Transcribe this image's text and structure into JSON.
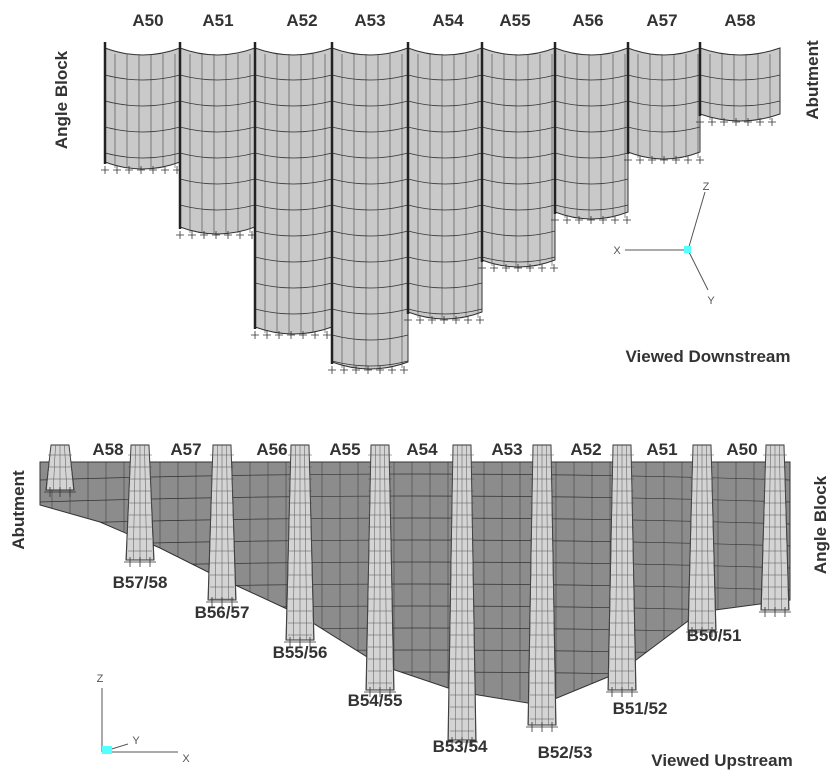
{
  "top_view": {
    "block_labels": [
      "A50",
      "A51",
      "A52",
      "A53",
      "A54",
      "A55",
      "A56",
      "A57",
      "A58"
    ],
    "left_label": "Angle Block",
    "right_label": "Abutment",
    "caption": "Viewed Downstream",
    "axes": {
      "z": "Z",
      "x": "X",
      "y": "Y"
    }
  },
  "bottom_view": {
    "block_labels": [
      "A58",
      "A57",
      "A56",
      "A55",
      "A54",
      "A53",
      "A52",
      "A51",
      "A50"
    ],
    "joint_labels": [
      "B57/58",
      "B56/57",
      "B55/56",
      "B54/55",
      "B53/54",
      "B52/53",
      "B51/52",
      "B50/51"
    ],
    "left_label": "Abutment",
    "right_label": "Angle Block",
    "caption": "Viewed Upstream",
    "axes": {
      "z": "Z",
      "y": "Y",
      "x": "X"
    }
  }
}
